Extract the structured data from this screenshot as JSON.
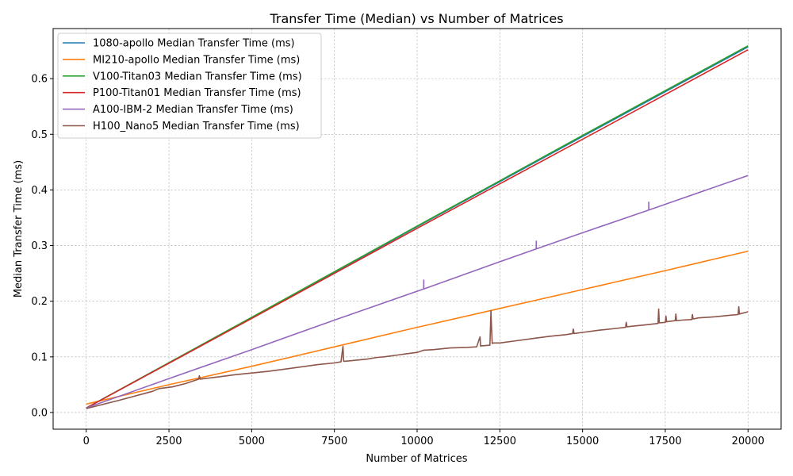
{
  "chart_data": {
    "type": "line",
    "title": "Transfer Time (Median) vs Number of Matrices",
    "xlabel": "Number of Matrices",
    "ylabel": "Median Transfer Time (ms)",
    "xlim": [
      -1000,
      21000
    ],
    "ylim": [
      -0.03,
      0.69
    ],
    "xticks": [
      0,
      2500,
      5000,
      7500,
      10000,
      12500,
      15000,
      17500,
      20000
    ],
    "xtick_labels": [
      "0",
      "2500",
      "5000",
      "7500",
      "10000",
      "12500",
      "15000",
      "17500",
      "20000"
    ],
    "yticks": [
      0.0,
      0.1,
      0.2,
      0.3,
      0.4,
      0.5,
      0.6
    ],
    "ytick_labels": [
      "0.0",
      "0.1",
      "0.2",
      "0.3",
      "0.4",
      "0.5",
      "0.6"
    ],
    "grid": true,
    "legend_position": "top-left",
    "series": [
      {
        "name": "1080-apollo Median Transfer Time (ms)",
        "color": "#1f77b4",
        "x": [
          0,
          5000,
          10000,
          15000,
          20000
        ],
        "y": [
          0.008,
          0.17,
          0.334,
          0.496,
          0.657
        ]
      },
      {
        "name": "MI210-apollo Median Transfer Time (ms)",
        "color": "#ff7f0e",
        "x": [
          0,
          2500,
          5000,
          7500,
          10000,
          12500,
          15000,
          17500,
          20000
        ],
        "y": [
          0.015,
          0.05,
          0.083,
          0.118,
          0.153,
          0.187,
          0.221,
          0.255,
          0.29
        ]
      },
      {
        "name": "V100-Titan03 Median Transfer Time (ms)",
        "color": "#2ca02c",
        "x": [
          0,
          5000,
          10000,
          15000,
          20000
        ],
        "y": [
          0.008,
          0.171,
          0.335,
          0.498,
          0.659
        ]
      },
      {
        "name": "P100-Titan01 Median Transfer Time (ms)",
        "color": "#d62728",
        "x": [
          0,
          5000,
          10000,
          15000,
          20000
        ],
        "y": [
          0.008,
          0.169,
          0.331,
          0.491,
          0.652
        ]
      },
      {
        "name": "A100-IBM-2 Median Transfer Time (ms)",
        "color": "#9467bd",
        "x": [
          0,
          2500,
          5000,
          7500,
          10000,
          10200,
          10201,
          10202,
          12500,
          13600,
          13601,
          13602,
          15000,
          17000,
          17001,
          17002,
          20000
        ],
        "y": [
          0.008,
          0.061,
          0.113,
          0.166,
          0.218,
          0.222,
          0.238,
          0.222,
          0.271,
          0.294,
          0.308,
          0.294,
          0.323,
          0.364,
          0.378,
          0.364,
          0.426
        ]
      },
      {
        "name": "H100_Nano5 Median Transfer Time (ms)",
        "color": "#8c564b",
        "x": [
          0,
          1000,
          2000,
          2200,
          2600,
          3000,
          3400,
          3420,
          3440,
          4000,
          4500,
          5000,
          5500,
          6000,
          6500,
          7000,
          7500,
          7700,
          7760,
          7780,
          7800,
          8000,
          8500,
          8800,
          9000,
          9500,
          10000,
          10200,
          10500,
          11000,
          11500,
          11800,
          11900,
          11920,
          11940,
          12000,
          12200,
          12230,
          12250,
          12270,
          12300,
          12500,
          13000,
          13500,
          14000,
          14500,
          14700,
          14720,
          14740,
          15000,
          15500,
          16000,
          16300,
          16320,
          16340,
          16500,
          17000,
          17280,
          17300,
          17320,
          17500,
          17520,
          17540,
          17800,
          17820,
          17840,
          18000,
          18300,
          18320,
          18340,
          18500,
          19000,
          19500,
          19700,
          19720,
          19740,
          20000
        ],
        "y": [
          0.007,
          0.022,
          0.038,
          0.043,
          0.046,
          0.052,
          0.06,
          0.066,
          0.06,
          0.064,
          0.068,
          0.071,
          0.074,
          0.078,
          0.082,
          0.086,
          0.089,
          0.091,
          0.119,
          0.092,
          0.092,
          0.093,
          0.096,
          0.099,
          0.1,
          0.104,
          0.108,
          0.112,
          0.113,
          0.116,
          0.117,
          0.118,
          0.136,
          0.119,
          0.12,
          0.12,
          0.121,
          0.183,
          0.15,
          0.124,
          0.125,
          0.125,
          0.129,
          0.133,
          0.137,
          0.14,
          0.142,
          0.15,
          0.142,
          0.144,
          0.148,
          0.151,
          0.153,
          0.162,
          0.154,
          0.155,
          0.158,
          0.16,
          0.186,
          0.161,
          0.162,
          0.173,
          0.163,
          0.165,
          0.177,
          0.165,
          0.166,
          0.167,
          0.176,
          0.168,
          0.17,
          0.172,
          0.175,
          0.176,
          0.19,
          0.177,
          0.181
        ]
      }
    ]
  }
}
